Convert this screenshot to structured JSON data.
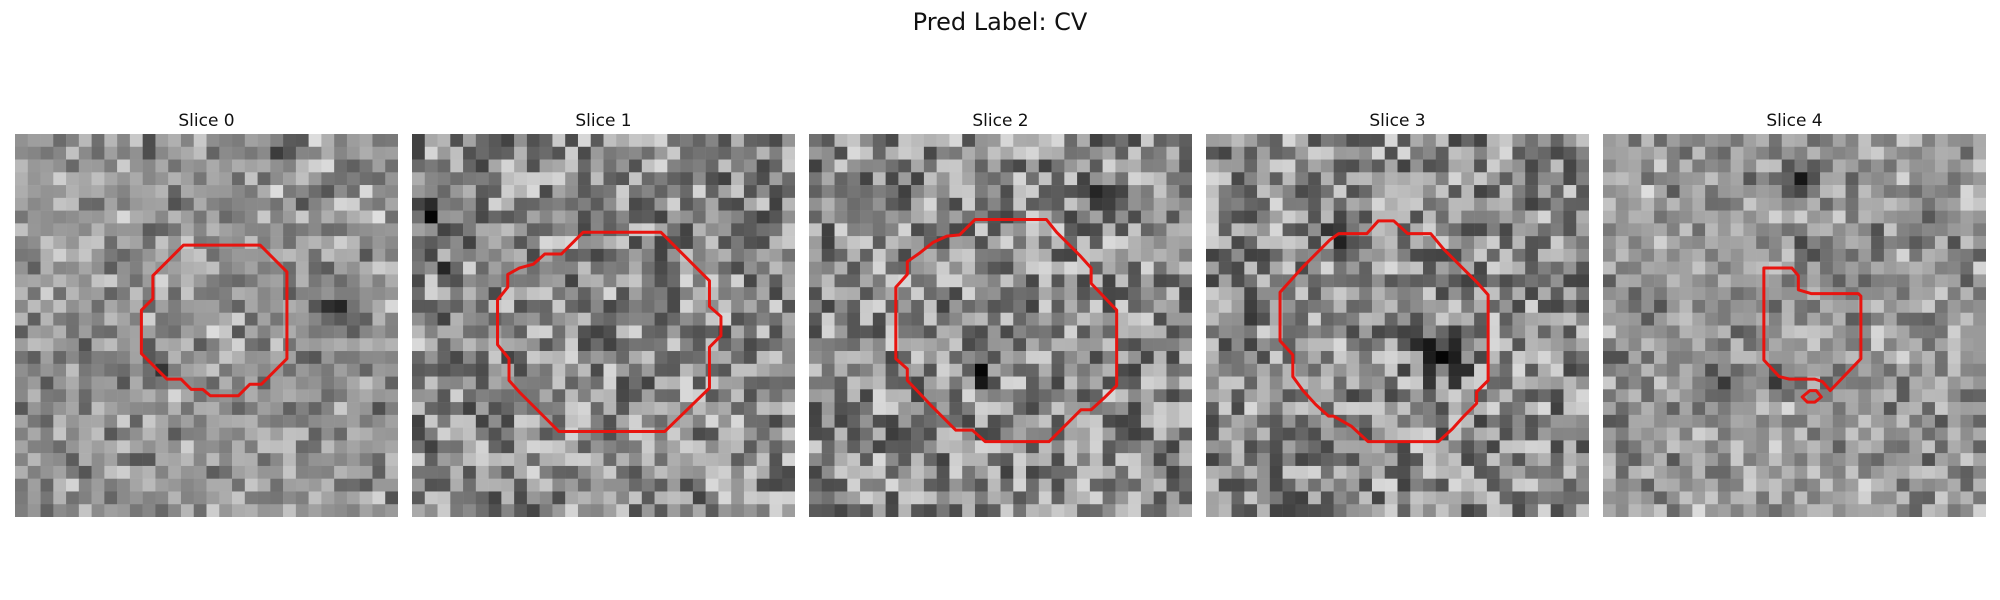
{
  "suptitle": "Pred Label: CV",
  "colors": {
    "contour": "#e8140f",
    "colormap": "gray"
  },
  "panels": [
    {
      "title": "Slice 0"
    },
    {
      "title": "Slice 1"
    },
    {
      "title": "Slice 2"
    },
    {
      "title": "Slice 3"
    },
    {
      "title": "Slice 4"
    }
  ]
}
